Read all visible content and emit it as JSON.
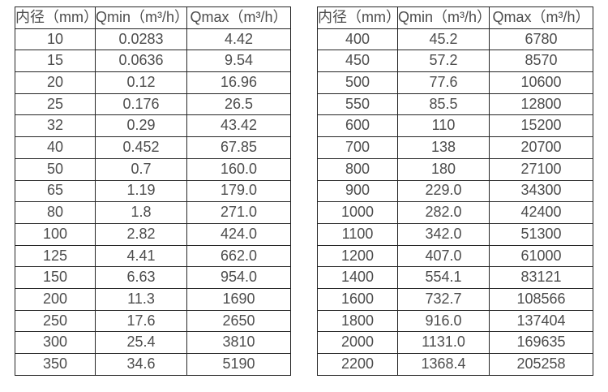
{
  "page": {
    "background": "#ffffff",
    "text_color": "#4d4d4d",
    "border_color": "#262626"
  },
  "tables": [
    {
      "name": "flow-table-left",
      "headers": [
        "内径（mm）",
        "Qmin（m³/h）",
        "Qmax（m³/h）"
      ],
      "rows": [
        [
          "10",
          "0.0283",
          "4.42"
        ],
        [
          "15",
          "0.0636",
          "9.54"
        ],
        [
          "20",
          "0.12",
          "16.96"
        ],
        [
          "25",
          "0.176",
          "26.5"
        ],
        [
          "32",
          "0.29",
          "43.42"
        ],
        [
          "40",
          "0.452",
          "67.85"
        ],
        [
          "50",
          "0.7",
          "160.0"
        ],
        [
          "65",
          "1.19",
          "179.0"
        ],
        [
          "80",
          "1.8",
          "271.0"
        ],
        [
          "100",
          "2.82",
          "424.0"
        ],
        [
          "125",
          "4.41",
          "662.0"
        ],
        [
          "150",
          "6.63",
          "954.0"
        ],
        [
          "200",
          "11.3",
          "1690"
        ],
        [
          "250",
          "17.6",
          "2650"
        ],
        [
          "300",
          "25.4",
          "3810"
        ],
        [
          "350",
          "34.6",
          "5190"
        ]
      ]
    },
    {
      "name": "flow-table-right",
      "headers": [
        "内径（mm）",
        "Qmin（m³/h）",
        "Qmax（m³/h）"
      ],
      "rows": [
        [
          "400",
          "45.2",
          "6780"
        ],
        [
          "450",
          "57.2",
          "8570"
        ],
        [
          "500",
          "77.6",
          "10600"
        ],
        [
          "550",
          "85.5",
          "12800"
        ],
        [
          "600",
          "110",
          "15200"
        ],
        [
          "700",
          "138",
          "20700"
        ],
        [
          "800",
          "180",
          "27100"
        ],
        [
          "900",
          "229.0",
          "34300"
        ],
        [
          "1000",
          "282.0",
          "42400"
        ],
        [
          "1100",
          "342.0",
          "51300"
        ],
        [
          "1200",
          "407.0",
          "61000"
        ],
        [
          "1400",
          "554.1",
          "83121"
        ],
        [
          "1600",
          "732.7",
          "108566"
        ],
        [
          "1800",
          "916.0",
          "137404"
        ],
        [
          "2000",
          "1131.0",
          "169635"
        ],
        [
          "2200",
          "1368.4",
          "205258"
        ]
      ]
    }
  ]
}
